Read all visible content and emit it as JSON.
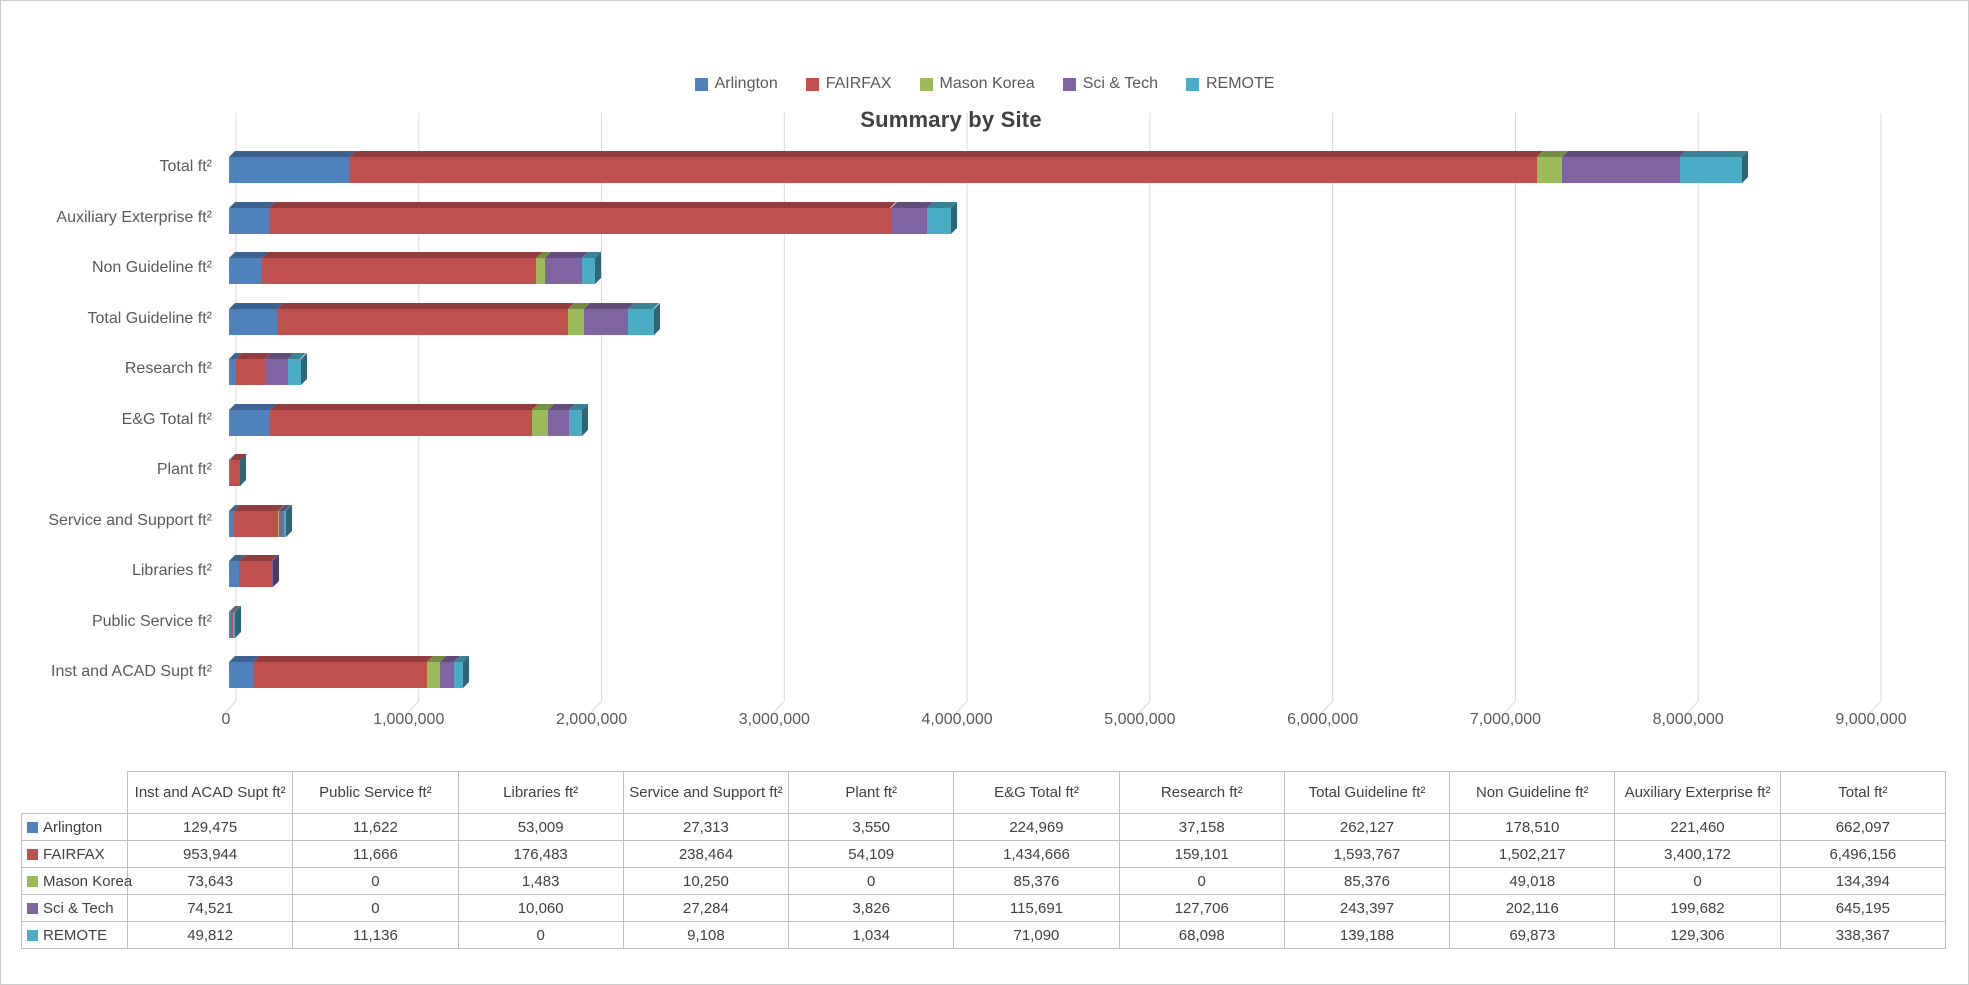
{
  "chart_data": {
    "type": "bar",
    "orientation": "horizontal-stacked-3d",
    "title": "Summary by Site",
    "xlabel": "",
    "ylabel": "",
    "legend_position": "top-center",
    "grid": true,
    "xlim": [
      0,
      9000000
    ],
    "x_tick_step": 1000000,
    "x_tick_labels": [
      "0",
      "1,000,000",
      "2,000,000",
      "3,000,000",
      "4,000,000",
      "5,000,000",
      "6,000,000",
      "7,000,000",
      "8,000,000",
      "9,000,000"
    ],
    "categories": [
      "Total ft²",
      "Auxiliary Exterprise ft²",
      "Non Guideline ft²",
      "Total Guideline ft²",
      "Research ft²",
      "E&G Total ft²",
      "Plant ft²",
      "Service and Support ft²",
      "Libraries ft²",
      "Public Service ft²",
      "Inst and ACAD Supt ft²"
    ],
    "series": [
      {
        "name": "Arlington",
        "color": "#4F81BD",
        "values": [
          662097,
          221460,
          178510,
          262127,
          37158,
          224969,
          3550,
          27313,
          53009,
          11622,
          129475
        ]
      },
      {
        "name": "FAIRFAX",
        "color": "#C0504D",
        "values": [
          6496156,
          3400172,
          1502217,
          1593767,
          159101,
          1434666,
          54109,
          238464,
          176483,
          11666,
          953944
        ]
      },
      {
        "name": "Mason Korea",
        "color": "#9BBB59",
        "values": [
          134394,
          0,
          49018,
          85376,
          0,
          85376,
          0,
          10250,
          1483,
          0,
          73643
        ]
      },
      {
        "name": "Sci & Tech",
        "color": "#8064A2",
        "values": [
          645195,
          199682,
          202116,
          243397,
          127706,
          115691,
          3826,
          27284,
          10060,
          0,
          74521
        ]
      },
      {
        "name": "REMOTE",
        "color": "#4BACC6",
        "values": [
          338367,
          129306,
          69873,
          139188,
          68098,
          71090,
          1034,
          9108,
          0,
          11136,
          49812
        ]
      }
    ]
  },
  "table": {
    "columns": [
      "Inst and ACAD Supt ft²",
      "Public Service ft²",
      "Libraries ft²",
      "Service and Support ft²",
      "Plant ft²",
      "E&G Total ft²",
      "Research ft²",
      "Total Guideline ft²",
      "Non Guideline ft²",
      "Auxiliary Exterprise ft²",
      "Total ft²"
    ],
    "rows": [
      {
        "label": "Arlington",
        "color": "#4F81BD",
        "values": [
          "129,475",
          "11,622",
          "53,009",
          "27,313",
          "3,550",
          "224,969",
          "37,158",
          "262,127",
          "178,510",
          "221,460",
          "662,097"
        ]
      },
      {
        "label": "FAIRFAX",
        "color": "#C0504D",
        "values": [
          "953,944",
          "11,666",
          "176,483",
          "238,464",
          "54,109",
          "1,434,666",
          "159,101",
          "1,593,767",
          "1,502,217",
          "3,400,172",
          "6,496,156"
        ]
      },
      {
        "label": "Mason Korea",
        "color": "#9BBB59",
        "values": [
          "73,643",
          "0",
          "1,483",
          "10,250",
          "0",
          "85,376",
          "0",
          "85,376",
          "49,018",
          "0",
          "134,394"
        ]
      },
      {
        "label": "Sci & Tech",
        "color": "#8064A2",
        "values": [
          "74,521",
          "0",
          "10,060",
          "27,284",
          "3,826",
          "115,691",
          "127,706",
          "243,397",
          "202,116",
          "199,682",
          "645,195"
        ]
      },
      {
        "label": "REMOTE",
        "color": "#4BACC6",
        "values": [
          "49,812",
          "11,136",
          "0",
          "9,108",
          "1,034",
          "71,090",
          "68,098",
          "139,188",
          "69,873",
          "129,306",
          "338,367"
        ]
      }
    ]
  },
  "styles": {
    "grid_color": "#D9D9D9",
    "axis_text_color": "#595959",
    "title_color": "#404040",
    "table_border_color": "#BFBFBF",
    "table_text_color": "#404040"
  }
}
